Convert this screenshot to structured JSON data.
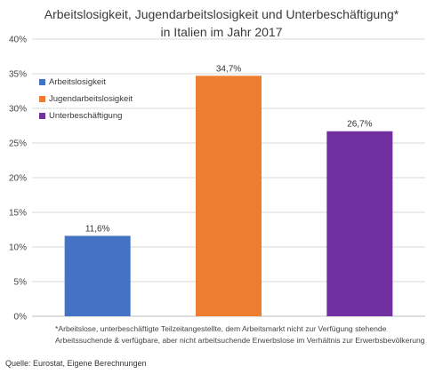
{
  "chart_data": {
    "type": "bar",
    "title_line1": "Arbeitslosigkeit, Jugendarbeitslosigkeit und Unterbeschäftigung*",
    "title_line2": "in Italien im Jahr 2017",
    "categories": [
      "Arbeitslosigkeit",
      "Jugendarbeitslosigkeit",
      "Unterbeschäftigung"
    ],
    "values": [
      11.6,
      34.7,
      26.7
    ],
    "value_labels": [
      "11,6%",
      "34,7%",
      "26,7%"
    ],
    "colors": [
      "#4472c4",
      "#ed7d31",
      "#7030a0"
    ],
    "ylim": [
      0,
      40
    ],
    "yticks": [
      0,
      5,
      10,
      15,
      20,
      25,
      30,
      35,
      40
    ],
    "ytick_labels": [
      "0%",
      "5%",
      "10%",
      "15%",
      "20%",
      "25%",
      "30%",
      "35%",
      "40%"
    ],
    "grid": true,
    "legend_position": "top-left",
    "xlabel": "",
    "ylabel": ""
  },
  "footnote_line1": "*Arbeitslose, unterbeschäftigte Teilzeitangestellte, dem Arbeitsmarkt nicht zur Verfügung stehende",
  "footnote_line2": "Arbeitssuchende & verfügbare, aber nicht arbeitsuchende Erwerbslose im Verhältnis zur Erwerbsbevölkerung",
  "source": "Quelle: Eurostat, Eigene Berechnungen"
}
